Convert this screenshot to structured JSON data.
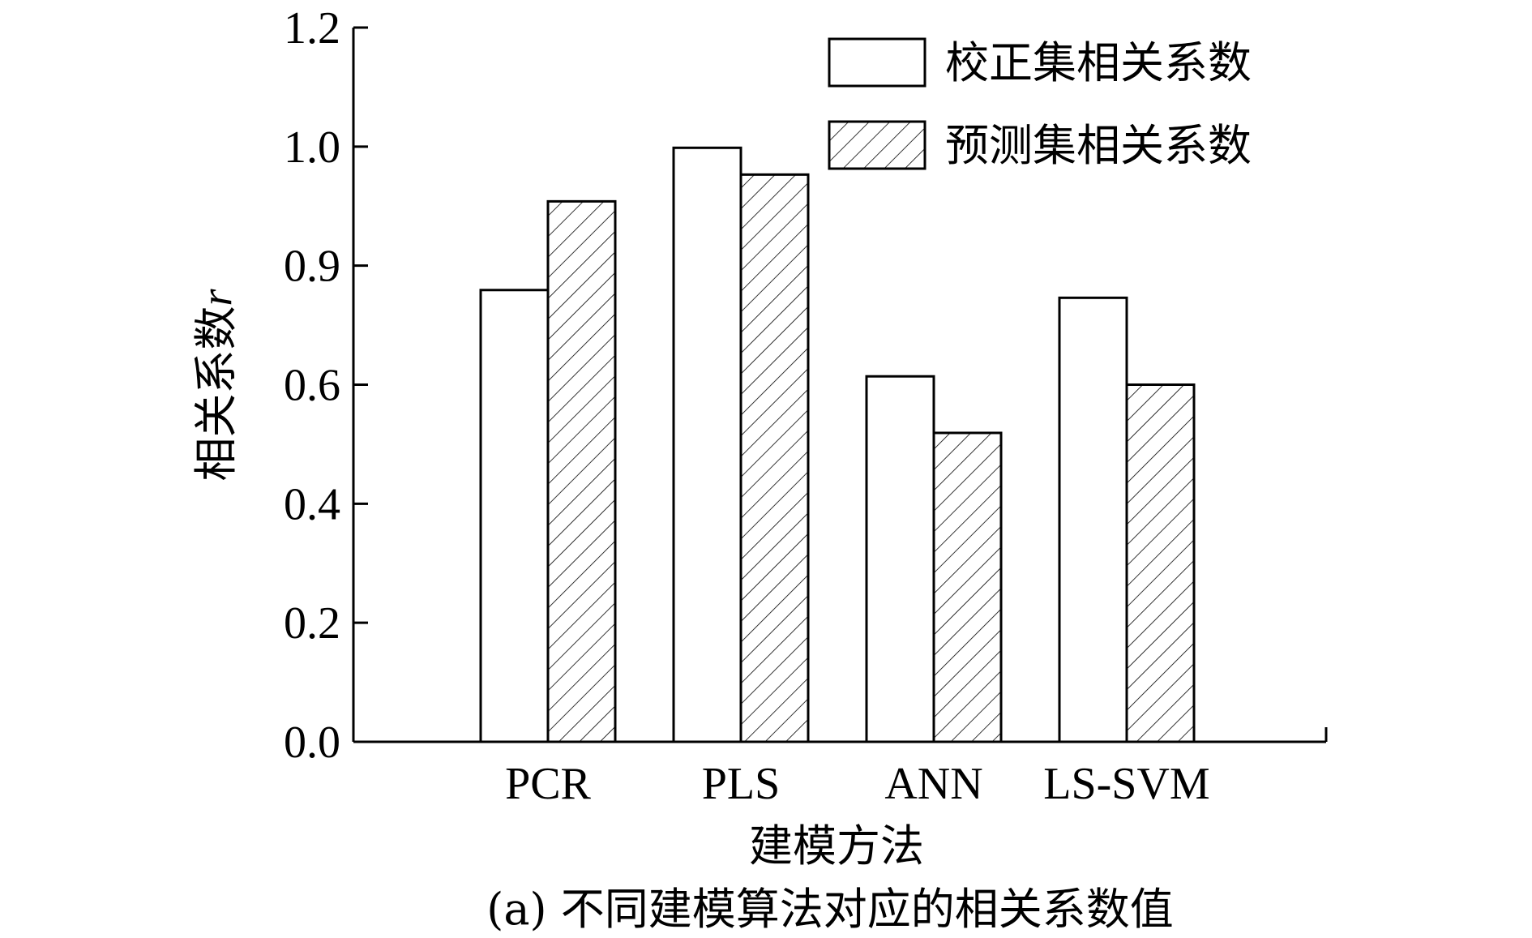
{
  "chart_data": {
    "type": "bar",
    "categories": [
      "PCR",
      "PLS",
      "ANN",
      "LS-SVM"
    ],
    "series": [
      {
        "name": "校正集相关系数",
        "pattern": "none",
        "values": [
          0.759,
          0.998,
          0.614,
          0.746
        ]
      },
      {
        "name": "预测集相关系数",
        "pattern": "hatch",
        "values": [
          0.908,
          0.953,
          0.519,
          0.6
        ]
      }
    ],
    "xlabel": "建模方法",
    "ylabel_text": "相关系数",
    "ylabel_var": "r",
    "ylim": [
      0.0,
      1.2
    ],
    "yticks": [
      "0.0",
      "0.2",
      "0.4",
      "0.6",
      "0.9",
      "1.0",
      "1.2"
    ],
    "grid": false,
    "legend_position": "top-right",
    "caption": "(a) 不同建模算法对应的相关系数值"
  },
  "colors": {
    "axis": "#000000",
    "bar_stroke": "#000000",
    "bar_fill": "#ffffff",
    "hatch": "#000000"
  }
}
